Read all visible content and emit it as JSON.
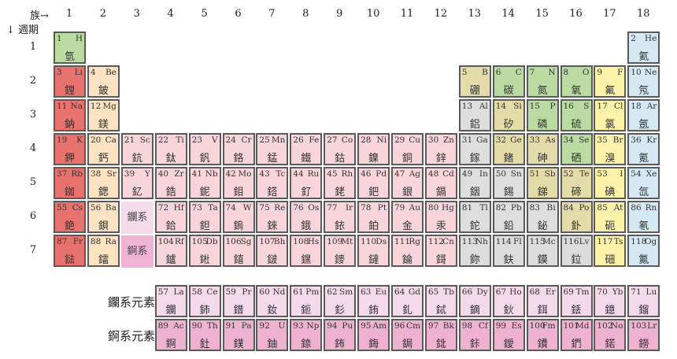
{
  "header": {
    "group_label": "族→",
    "period_label": "↓ 週期"
  },
  "groups": [
    "1",
    "2",
    "3",
    "4",
    "5",
    "6",
    "7",
    "8",
    "9",
    "10",
    "11",
    "12",
    "13",
    "14",
    "15",
    "16",
    "17",
    "18"
  ],
  "periods": [
    "1",
    "2",
    "3",
    "4",
    "5",
    "6",
    "7"
  ],
  "placeholders": {
    "lanthanide": "鑭系",
    "actinide": "錒系"
  },
  "series_labels": {
    "lanthanide": "鑭系元素",
    "actinide": "錒系元素"
  },
  "colors": {
    "alkali": "#e8726e",
    "alkaline": "#fde3c2",
    "transition": "#f7d5da",
    "post": "#dfdedf",
    "metalloid": "#e3dca8",
    "nonmetal": "#badca2",
    "halogen": "#fcf2aa",
    "noble": "#d4e9f3",
    "lanthanide": "#f4d9e9",
    "actinide": "#eeb2d0",
    "superheavy": "#dcdcdc"
  },
  "elements": [
    [
      1,
      "H",
      "氫",
      1,
      1,
      "nonmetal"
    ],
    [
      2,
      "He",
      "氦",
      18,
      1,
      "noble"
    ],
    [
      3,
      "Li",
      "鋰",
      1,
      2,
      "alkali"
    ],
    [
      4,
      "Be",
      "鈹",
      2,
      2,
      "alkaline"
    ],
    [
      5,
      "B",
      "硼",
      13,
      2,
      "metalloid"
    ],
    [
      6,
      "C",
      "碳",
      14,
      2,
      "nonmetal"
    ],
    [
      7,
      "N",
      "氮",
      15,
      2,
      "nonmetal"
    ],
    [
      8,
      "O",
      "氧",
      16,
      2,
      "nonmetal"
    ],
    [
      9,
      "F",
      "氟",
      17,
      2,
      "halogen"
    ],
    [
      10,
      "Ne",
      "氖",
      18,
      2,
      "noble"
    ],
    [
      11,
      "Na",
      "鈉",
      1,
      3,
      "alkali"
    ],
    [
      12,
      "Mg",
      "鎂",
      2,
      3,
      "alkaline"
    ],
    [
      13,
      "Al",
      "鋁",
      13,
      3,
      "post"
    ],
    [
      14,
      "Si",
      "矽",
      14,
      3,
      "metalloid"
    ],
    [
      15,
      "P",
      "磷",
      15,
      3,
      "nonmetal"
    ],
    [
      16,
      "S",
      "硫",
      16,
      3,
      "nonmetal"
    ],
    [
      17,
      "Cl",
      "氯",
      17,
      3,
      "halogen"
    ],
    [
      18,
      "Ar",
      "氬",
      18,
      3,
      "noble"
    ],
    [
      19,
      "K",
      "鉀",
      1,
      4,
      "alkali"
    ],
    [
      20,
      "Ca",
      "鈣",
      2,
      4,
      "alkaline"
    ],
    [
      21,
      "Sc",
      "鈧",
      3,
      4,
      "transition"
    ],
    [
      22,
      "Ti",
      "鈦",
      4,
      4,
      "transition"
    ],
    [
      23,
      "V",
      "釩",
      5,
      4,
      "transition"
    ],
    [
      24,
      "Cr",
      "鉻",
      6,
      4,
      "transition"
    ],
    [
      25,
      "Mn",
      "錳",
      7,
      4,
      "transition"
    ],
    [
      26,
      "Fe",
      "鐵",
      8,
      4,
      "transition"
    ],
    [
      27,
      "Co",
      "鈷",
      9,
      4,
      "transition"
    ],
    [
      28,
      "Ni",
      "鎳",
      10,
      4,
      "transition"
    ],
    [
      29,
      "Cu",
      "銅",
      11,
      4,
      "transition"
    ],
    [
      30,
      "Zn",
      "鋅",
      12,
      4,
      "transition"
    ],
    [
      31,
      "Ga",
      "鎵",
      13,
      4,
      "post"
    ],
    [
      32,
      "Ge",
      "鍺",
      14,
      4,
      "metalloid"
    ],
    [
      33,
      "As",
      "砷",
      15,
      4,
      "metalloid"
    ],
    [
      34,
      "Se",
      "硒",
      16,
      4,
      "nonmetal"
    ],
    [
      35,
      "Br",
      "溴",
      17,
      4,
      "halogen"
    ],
    [
      36,
      "Kr",
      "氪",
      18,
      4,
      "noble"
    ],
    [
      37,
      "Rb",
      "銣",
      1,
      5,
      "alkali"
    ],
    [
      38,
      "Sr",
      "鍶",
      2,
      5,
      "alkaline"
    ],
    [
      39,
      "Y",
      "釔",
      3,
      5,
      "transition"
    ],
    [
      40,
      "Zr",
      "鋯",
      4,
      5,
      "transition"
    ],
    [
      41,
      "Nb",
      "鈮",
      5,
      5,
      "transition"
    ],
    [
      42,
      "Mo",
      "鉬",
      6,
      5,
      "transition"
    ],
    [
      43,
      "Tc",
      "鎝",
      7,
      5,
      "transition"
    ],
    [
      44,
      "Ru",
      "釕",
      8,
      5,
      "transition"
    ],
    [
      45,
      "Rh",
      "銠",
      9,
      5,
      "transition"
    ],
    [
      46,
      "Pd",
      "鈀",
      10,
      5,
      "transition"
    ],
    [
      47,
      "Ag",
      "銀",
      11,
      5,
      "transition"
    ],
    [
      48,
      "Cd",
      "鎘",
      12,
      5,
      "transition"
    ],
    [
      49,
      "In",
      "銦",
      13,
      5,
      "post"
    ],
    [
      50,
      "Sn",
      "錫",
      14,
      5,
      "post"
    ],
    [
      51,
      "Sb",
      "銻",
      15,
      5,
      "metalloid"
    ],
    [
      52,
      "Te",
      "碲",
      16,
      5,
      "metalloid"
    ],
    [
      53,
      "I",
      "碘",
      17,
      5,
      "halogen"
    ],
    [
      54,
      "Xe",
      "氙",
      18,
      5,
      "noble"
    ],
    [
      55,
      "Cs",
      "銫",
      1,
      6,
      "alkali"
    ],
    [
      56,
      "Ba",
      "鋇",
      2,
      6,
      "alkaline"
    ],
    [
      72,
      "Hf",
      "鉿",
      4,
      6,
      "transition"
    ],
    [
      73,
      "Ta",
      "鉭",
      5,
      6,
      "transition"
    ],
    [
      74,
      "W",
      "鎢",
      6,
      6,
      "transition"
    ],
    [
      75,
      "Re",
      "錸",
      7,
      6,
      "transition"
    ],
    [
      76,
      "Os",
      "鋨",
      8,
      6,
      "transition"
    ],
    [
      77,
      "Ir",
      "銥",
      9,
      6,
      "transition"
    ],
    [
      78,
      "Pt",
      "鉑",
      10,
      6,
      "transition"
    ],
    [
      79,
      "Au",
      "金",
      11,
      6,
      "transition"
    ],
    [
      80,
      "Hg",
      "汞",
      12,
      6,
      "transition"
    ],
    [
      81,
      "Tl",
      "鉈",
      13,
      6,
      "post"
    ],
    [
      82,
      "Pb",
      "鉛",
      14,
      6,
      "post"
    ],
    [
      83,
      "Bi",
      "鉍",
      15,
      6,
      "post"
    ],
    [
      84,
      "Po",
      "釙",
      16,
      6,
      "metalloid"
    ],
    [
      85,
      "At",
      "砈",
      17,
      6,
      "halogen"
    ],
    [
      86,
      "Rn",
      "氡",
      18,
      6,
      "noble"
    ],
    [
      87,
      "Fr",
      "鍅",
      1,
      7,
      "alkali"
    ],
    [
      88,
      "Ra",
      "鐳",
      2,
      7,
      "alkaline"
    ],
    [
      104,
      "Rf",
      "鑪",
      4,
      7,
      "transition"
    ],
    [
      105,
      "Db",
      "𨧀",
      5,
      7,
      "transition"
    ],
    [
      106,
      "Sg",
      "𨭎",
      6,
      7,
      "transition"
    ],
    [
      107,
      "Bh",
      "𨨏",
      7,
      7,
      "transition"
    ],
    [
      108,
      "Hs",
      "𨭆",
      8,
      7,
      "transition"
    ],
    [
      109,
      "Mt",
      "䥑",
      9,
      7,
      "transition"
    ],
    [
      110,
      "Ds",
      "鐽",
      10,
      7,
      "transition"
    ],
    [
      111,
      "Rg",
      "錀",
      11,
      7,
      "transition"
    ],
    [
      112,
      "Cn",
      "鎶",
      12,
      7,
      "transition"
    ],
    [
      113,
      "Nh",
      "鉨",
      13,
      7,
      "superheavy"
    ],
    [
      114,
      "Fl",
      "鈇",
      14,
      7,
      "superheavy"
    ],
    [
      115,
      "Mc",
      "鏌",
      15,
      7,
      "superheavy"
    ],
    [
      116,
      "Lv",
      "鉝",
      16,
      7,
      "superheavy"
    ],
    [
      117,
      "Ts",
      "鿬",
      17,
      7,
      "halogen"
    ],
    [
      118,
      "Og",
      "鿫",
      18,
      7,
      "noble"
    ],
    [
      57,
      "La",
      "鑭",
      4,
      9,
      "lanthanide"
    ],
    [
      58,
      "Ce",
      "鈰",
      5,
      9,
      "lanthanide"
    ],
    [
      59,
      "Pr",
      "鐠",
      6,
      9,
      "lanthanide"
    ],
    [
      60,
      "Nd",
      "釹",
      7,
      9,
      "lanthanide"
    ],
    [
      61,
      "Pm",
      "鉕",
      8,
      9,
      "lanthanide"
    ],
    [
      62,
      "Sm",
      "釤",
      9,
      9,
      "lanthanide"
    ],
    [
      63,
      "Eu",
      "銪",
      10,
      9,
      "lanthanide"
    ],
    [
      64,
      "Gd",
      "釓",
      11,
      9,
      "lanthanide"
    ],
    [
      65,
      "Tb",
      "鋱",
      12,
      9,
      "lanthanide"
    ],
    [
      66,
      "Dy",
      "鏑",
      13,
      9,
      "lanthanide"
    ],
    [
      67,
      "Ho",
      "鈥",
      14,
      9,
      "lanthanide"
    ],
    [
      68,
      "Er",
      "鉺",
      15,
      9,
      "lanthanide"
    ],
    [
      69,
      "Tm",
      "銩",
      16,
      9,
      "lanthanide"
    ],
    [
      70,
      "Yb",
      "鐿",
      17,
      9,
      "lanthanide"
    ],
    [
      71,
      "Lu",
      "鎦",
      18,
      9,
      "lanthanide"
    ],
    [
      89,
      "Ac",
      "錒",
      4,
      10,
      "actinide"
    ],
    [
      90,
      "Th",
      "釷",
      5,
      10,
      "actinide"
    ],
    [
      91,
      "Pa",
      "鏷",
      6,
      10,
      "actinide"
    ],
    [
      92,
      "U",
      "鈾",
      7,
      10,
      "actinide"
    ],
    [
      93,
      "Np",
      "錼",
      8,
      10,
      "actinide"
    ],
    [
      94,
      "Pu",
      "鈽",
      9,
      10,
      "actinide"
    ],
    [
      95,
      "Am",
      "鋂",
      10,
      10,
      "actinide"
    ],
    [
      96,
      "Cm",
      "鋦",
      11,
      10,
      "actinide"
    ],
    [
      97,
      "Bk",
      "鉳",
      12,
      10,
      "actinide"
    ],
    [
      98,
      "Cf",
      "鉲",
      13,
      10,
      "actinide"
    ],
    [
      99,
      "Es",
      "鑀",
      14,
      10,
      "actinide"
    ],
    [
      100,
      "Fm",
      "鐨",
      15,
      10,
      "actinide"
    ],
    [
      101,
      "Md",
      "鍆",
      16,
      10,
      "actinide"
    ],
    [
      102,
      "No",
      "鍩",
      17,
      10,
      "actinide"
    ],
    [
      103,
      "Lr",
      "鐒",
      18,
      10,
      "actinide"
    ]
  ]
}
